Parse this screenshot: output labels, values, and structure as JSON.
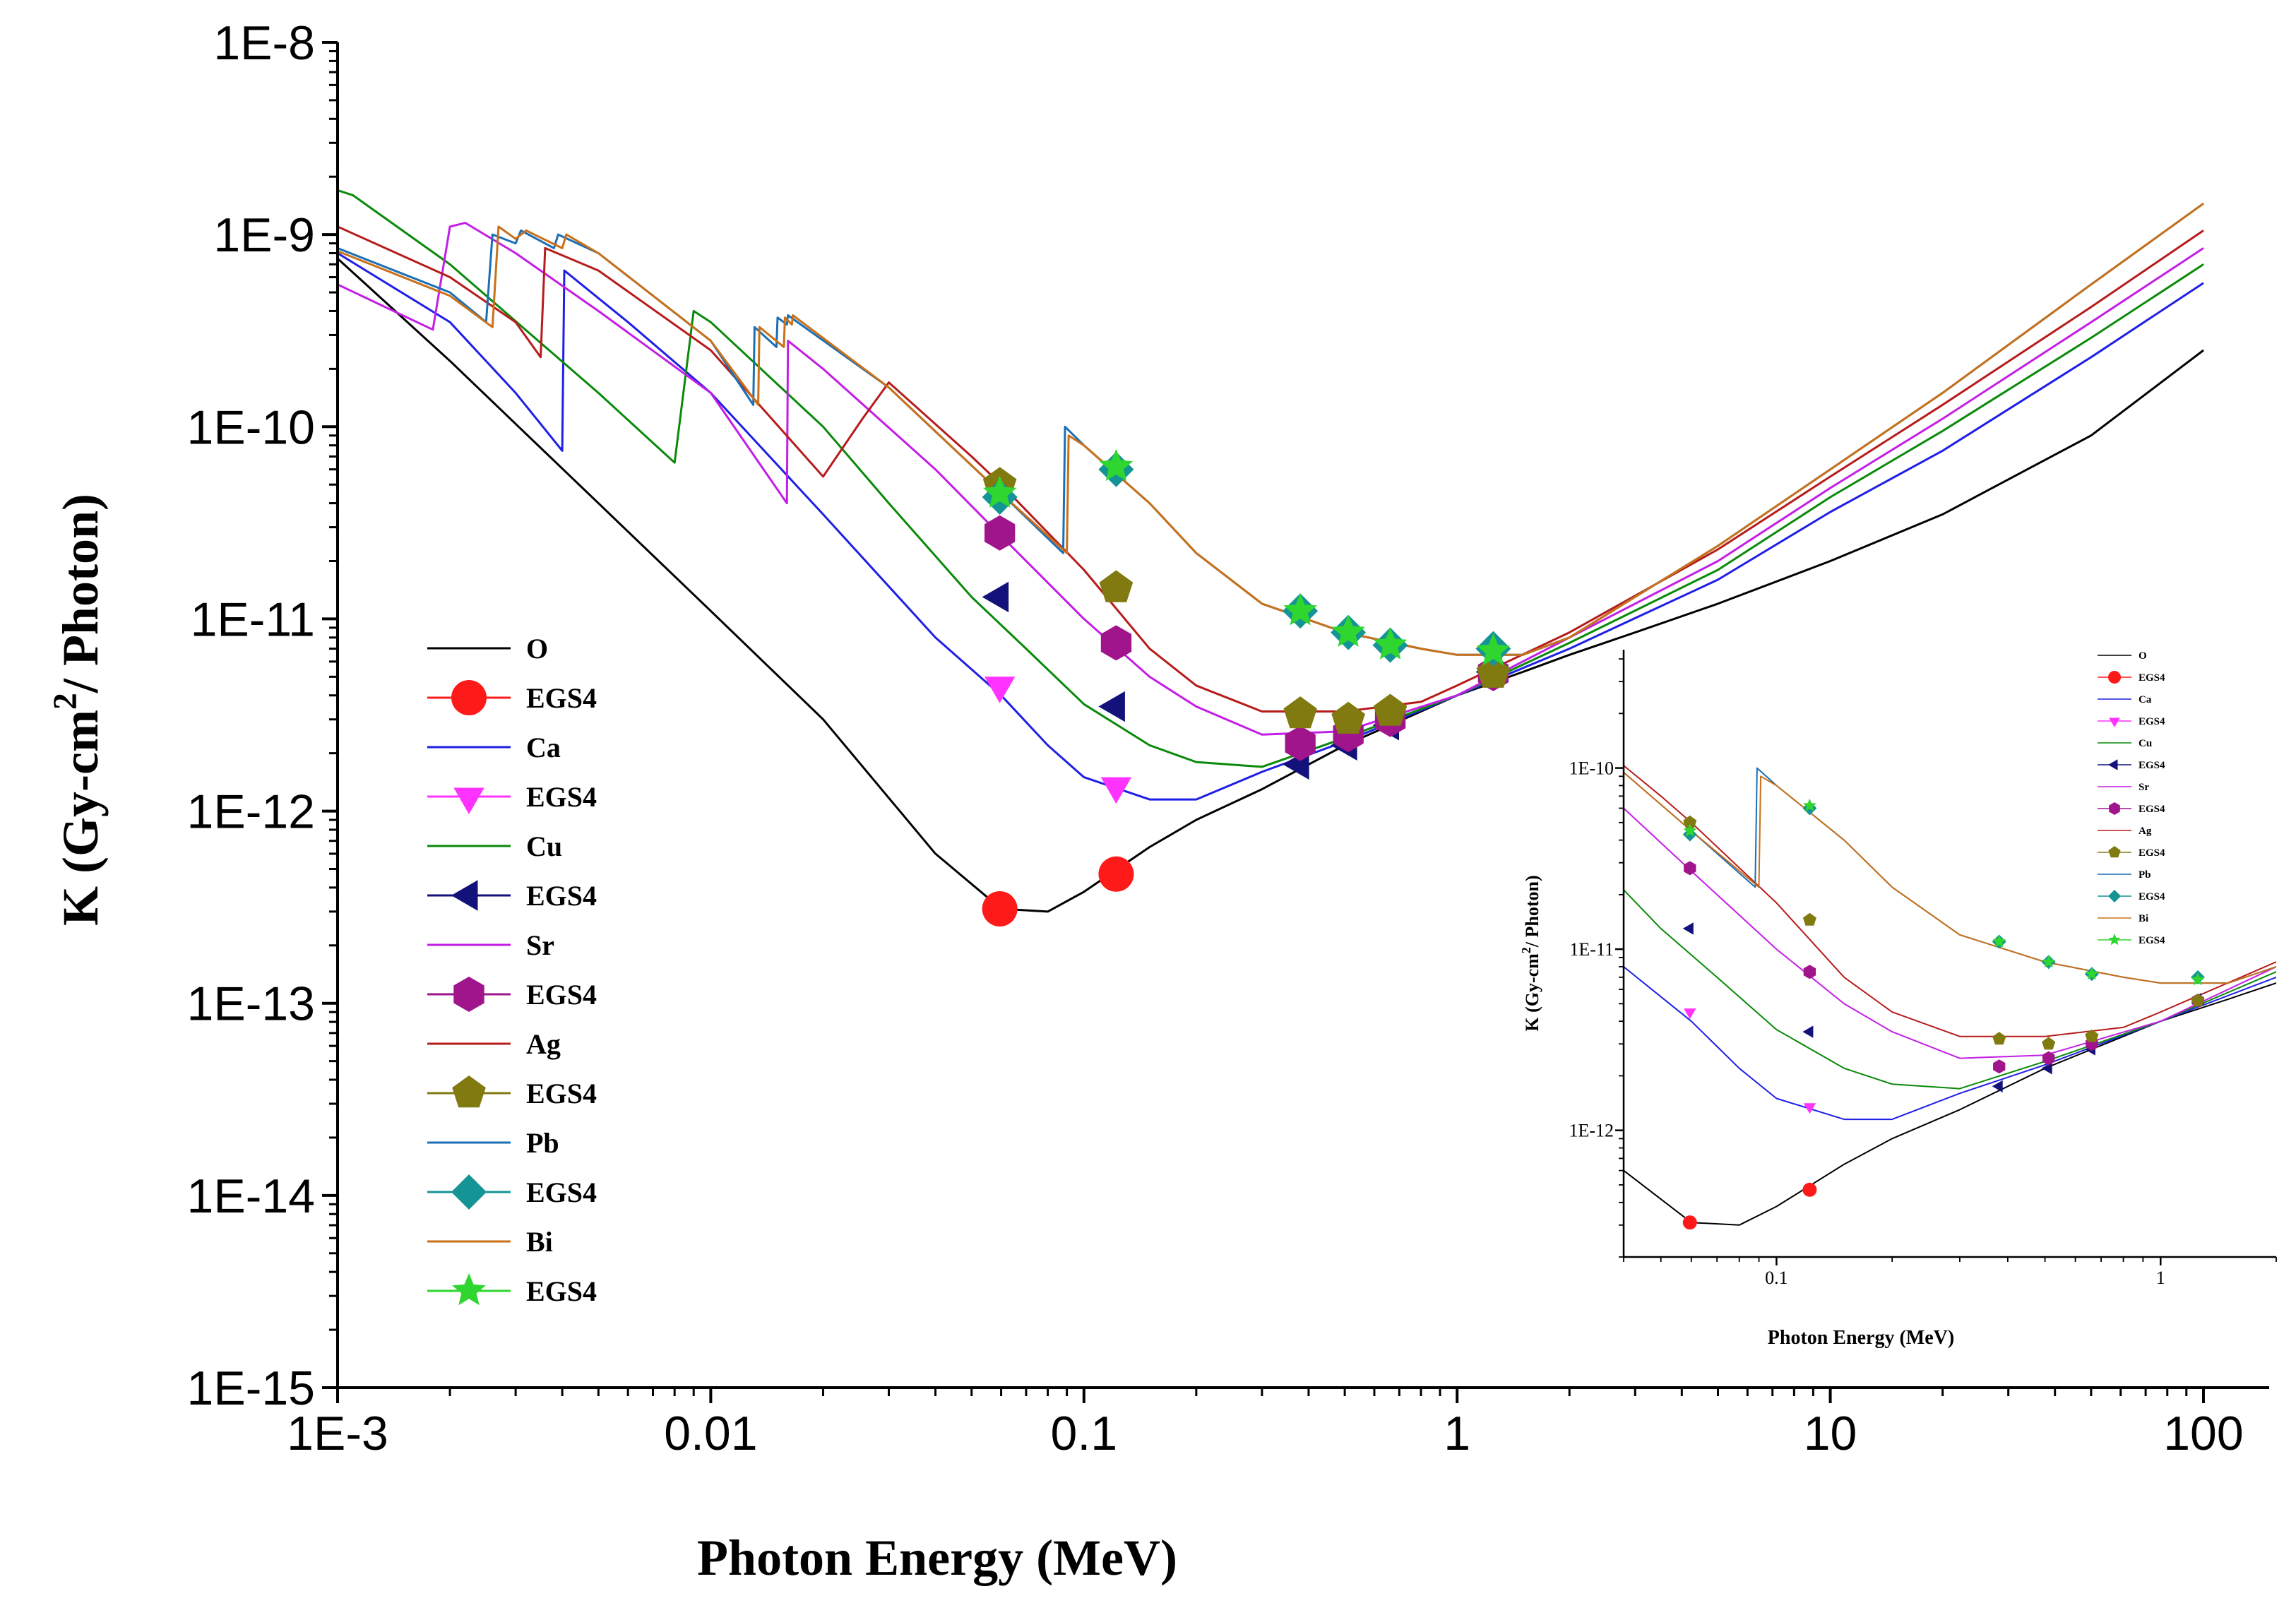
{
  "colors": {
    "O": "#000000",
    "Ca": "#1f1fe6",
    "Cu": "#0a8a0a",
    "Sr": "#c41ee6",
    "Ag": "#b71c1c",
    "Pb": "#1b6fb5",
    "Bi": "#c8711a",
    "EGS4_O": "#ff1a1a",
    "EGS4_Ca": "#ff33ff",
    "EGS4_Cu": "#12127a",
    "EGS4_Sr": "#a0148c",
    "EGS4_Ag": "#807a10",
    "EGS4_Pb": "#149494",
    "EGS4_Bi": "#2fd62f"
  },
  "chart_data": [
    {
      "type": "line",
      "name": "main",
      "xlabel": "Photon Energy (MeV)",
      "ylabel": "K (Gy-cm",
      "ylabel_sup": "2",
      "ylabel_tail": "/ Photon)",
      "xscale": "log",
      "yscale": "log",
      "xlim": [
        0.001,
        150
      ],
      "ylim": [
        1e-15,
        1e-08
      ],
      "xticks": [
        0.001,
        0.01,
        0.1,
        1,
        10,
        100
      ],
      "xtick_labels": [
        "1E-3",
        "0.01",
        "0.1",
        "1",
        "10",
        "100"
      ],
      "yticks": [
        1e-15,
        1e-14,
        1e-13,
        1e-12,
        1e-11,
        1e-10,
        1e-09,
        1e-08
      ],
      "ytick_labels": [
        "1E-15",
        "1E-14",
        "1E-13",
        "1E-12",
        "1E-11",
        "1E-10",
        "1E-9",
        "1E-8"
      ],
      "legend_position": "lower-left",
      "legend": [
        "O",
        "EGS4",
        "Ca",
        "EGS4",
        "Cu",
        "EGS4",
        "Sr",
        "EGS4",
        "Ag",
        "EGS4",
        "Pb",
        "EGS4",
        "Bi",
        "EGS4"
      ],
      "series": [
        {
          "name": "O",
          "x": [
            0.001,
            0.002,
            0.005,
            0.01,
            0.02,
            0.04,
            0.06,
            0.08,
            0.1,
            0.15,
            0.2,
            0.3,
            0.5,
            0.8,
            1,
            1.5,
            2,
            3,
            5,
            10,
            20,
            50,
            100
          ],
          "y": [
            7.5e-10,
            2.2e-10,
            4e-11,
            1.1e-11,
            3e-12,
            6e-13,
            3.1e-13,
            3e-13,
            3.8e-13,
            6.5e-13,
            9e-13,
            1.3e-12,
            2.2e-12,
            3.3e-12,
            4e-12,
            5.3e-12,
            6.5e-12,
            8.5e-12,
            1.2e-11,
            2e-11,
            3.5e-11,
            9e-11,
            2.5e-10
          ]
        },
        {
          "name": "Ca",
          "x": [
            0.001,
            0.002,
            0.003,
            0.004,
            0.00405,
            0.006,
            0.01,
            0.02,
            0.04,
            0.06,
            0.08,
            0.1,
            0.15,
            0.2,
            0.3,
            0.5,
            1,
            2,
            5,
            10,
            20,
            50,
            100
          ],
          "y": [
            8e-10,
            3.5e-10,
            1.5e-10,
            7.5e-11,
            6.5e-10,
            3.5e-10,
            1.5e-10,
            3.5e-11,
            8e-12,
            4e-12,
            2.2e-12,
            1.5e-12,
            1.15e-12,
            1.15e-12,
            1.6e-12,
            2.3e-12,
            4e-12,
            7e-12,
            1.6e-11,
            3.6e-11,
            7.5e-11,
            2.3e-10,
            5.6e-10
          ]
        },
        {
          "name": "Cu",
          "x": [
            0.001,
            0.0011,
            0.002,
            0.005,
            0.008,
            0.009,
            0.01,
            0.02,
            0.03,
            0.05,
            0.07,
            0.1,
            0.15,
            0.2,
            0.3,
            0.5,
            1,
            2,
            5,
            10,
            20,
            50,
            100
          ],
          "y": [
            1.7e-09,
            1.6e-09,
            7e-10,
            1.5e-10,
            6.5e-11,
            4e-10,
            3.5e-10,
            1e-10,
            4e-11,
            1.3e-11,
            7e-12,
            3.6e-12,
            2.2e-12,
            1.8e-12,
            1.7e-12,
            2.4e-12,
            4e-12,
            7.5e-12,
            1.8e-11,
            4.3e-11,
            9.5e-11,
            2.9e-10,
            7e-10
          ]
        },
        {
          "name": "Sr",
          "x": [
            0.001,
            0.0018,
            0.002,
            0.0022,
            0.003,
            0.005,
            0.01,
            0.016,
            0.0161,
            0.02,
            0.04,
            0.06,
            0.1,
            0.15,
            0.2,
            0.3,
            0.5,
            1,
            2,
            5,
            10,
            20,
            50,
            100
          ],
          "y": [
            5.5e-10,
            3.2e-10,
            1.1e-09,
            1.15e-09,
            8e-10,
            4e-10,
            1.5e-10,
            4e-11,
            2.8e-10,
            2e-10,
            6e-11,
            2.7e-11,
            1e-11,
            5e-12,
            3.5e-12,
            2.5e-12,
            2.6e-12,
            4e-12,
            8e-12,
            2e-11,
            4.8e-11,
            1.1e-10,
            3.5e-10,
            8.5e-10
          ]
        },
        {
          "name": "Ag",
          "x": [
            0.001,
            0.002,
            0.003,
            0.0035,
            0.0036,
            0.005,
            0.01,
            0.02,
            0.0255,
            0.03,
            0.05,
            0.06,
            0.1,
            0.15,
            0.2,
            0.3,
            0.5,
            0.8,
            1,
            2,
            5,
            10,
            20,
            50,
            100
          ],
          "y": [
            1.1e-09,
            6e-10,
            3.5e-10,
            2.3e-10,
            8.5e-10,
            6.5e-10,
            2.5e-10,
            5.5e-11,
            1.1e-10,
            1.7e-10,
            7e-11,
            5e-11,
            1.8e-11,
            7e-12,
            4.5e-12,
            3.3e-12,
            3.3e-12,
            3.7e-12,
            4.5e-12,
            8.5e-12,
            2.3e-11,
            5.5e-11,
            1.3e-10,
            4.2e-10,
            1.05e-09
          ]
        },
        {
          "name": "Pb",
          "x": [
            0.001,
            0.002,
            0.0025,
            0.0026,
            0.003,
            0.0031,
            0.0038,
            0.0039,
            0.005,
            0.01,
            0.013,
            0.0131,
            0.015,
            0.0151,
            0.016,
            0.0161,
            0.03,
            0.06,
            0.088,
            0.089,
            0.1,
            0.15,
            0.2,
            0.3,
            0.5,
            0.8,
            1,
            1.5,
            2,
            5,
            10,
            20,
            50,
            100
          ],
          "y": [
            8.5e-10,
            5e-10,
            3.5e-10,
            1e-09,
            9e-10,
            1.05e-09,
            8.5e-10,
            1e-09,
            8e-10,
            2.8e-10,
            1.3e-10,
            3.3e-10,
            2.6e-10,
            3.7e-10,
            3.4e-10,
            3.8e-10,
            1.6e-10,
            4.5e-11,
            2.2e-11,
            1e-10,
            8e-11,
            4e-11,
            2.2e-11,
            1.2e-11,
            8.5e-12,
            7e-12,
            6.5e-12,
            6.5e-12,
            8e-12,
            2.4e-11,
            6e-11,
            1.5e-10,
            5.5e-10,
            1.45e-09
          ]
        },
        {
          "name": "Bi",
          "x": [
            0.001,
            0.002,
            0.0026,
            0.0027,
            0.003,
            0.0032,
            0.004,
            0.0041,
            0.005,
            0.01,
            0.0134,
            0.0135,
            0.0157,
            0.0158,
            0.0165,
            0.0166,
            0.03,
            0.06,
            0.09,
            0.091,
            0.1,
            0.15,
            0.2,
            0.3,
            0.5,
            0.8,
            1,
            1.5,
            2,
            5,
            10,
            20,
            50,
            100
          ],
          "y": [
            8.2e-10,
            4.8e-10,
            3.3e-10,
            1.1e-09,
            9.5e-10,
            1.05e-09,
            8.5e-10,
            1e-09,
            8e-10,
            2.8e-10,
            1.3e-10,
            3.3e-10,
            2.6e-10,
            3.7e-10,
            3.4e-10,
            3.8e-10,
            1.6e-10,
            4.5e-11,
            2.2e-11,
            9e-11,
            8e-11,
            4e-11,
            2.2e-11,
            1.2e-11,
            8.5e-12,
            7e-12,
            6.5e-12,
            6.5e-12,
            8e-12,
            2.4e-11,
            6e-11,
            1.5e-10,
            5.5e-10,
            1.45e-09
          ]
        }
      ],
      "markers": [
        {
          "name": "EGS4",
          "of": "O",
          "shape": "circle",
          "x": [
            0.0595,
            0.122
          ],
          "y": [
            3.1e-13,
            4.7e-13
          ]
        },
        {
          "name": "EGS4",
          "of": "Ca",
          "shape": "tri-down",
          "x": [
            0.0595,
            0.122
          ],
          "y": [
            4.5e-12,
            1.35e-12
          ]
        },
        {
          "name": "EGS4",
          "of": "Cu",
          "shape": "tri-left",
          "x": [
            0.0595,
            0.122,
            0.38,
            0.511,
            0.662,
            1.25
          ],
          "y": [
            1.3e-11,
            3.5e-12,
            1.75e-12,
            2.2e-12,
            2.8e-12,
            5.3e-12
          ]
        },
        {
          "name": "EGS4",
          "of": "Sr",
          "shape": "hexagon",
          "x": [
            0.0595,
            0.122,
            0.38,
            0.511,
            0.662,
            1.25
          ],
          "y": [
            2.8e-11,
            7.5e-12,
            2.25e-12,
            2.5e-12,
            3e-12,
            5.2e-12
          ]
        },
        {
          "name": "EGS4",
          "of": "Ag",
          "shape": "pentagon",
          "x": [
            0.0595,
            0.122,
            0.38,
            0.511,
            0.662,
            1.25
          ],
          "y": [
            5e-11,
            1.45e-11,
            3.2e-12,
            3e-12,
            3.3e-12,
            5.2e-12
          ]
        },
        {
          "name": "EGS4",
          "of": "Pb",
          "shape": "diamond",
          "x": [
            0.0595,
            0.122,
            0.38,
            0.511,
            0.662,
            1.25
          ],
          "y": [
            4.3e-11,
            6e-11,
            1.1e-11,
            8.5e-12,
            7.3e-12,
            7e-12
          ]
        },
        {
          "name": "EGS4",
          "of": "Bi",
          "shape": "star",
          "x": [
            0.0595,
            0.122,
            0.38,
            0.511,
            0.662,
            1.25
          ],
          "y": [
            4.5e-11,
            6.2e-11,
            1.1e-11,
            8.5e-12,
            7.3e-12,
            6.8e-12
          ]
        }
      ]
    },
    {
      "type": "line",
      "name": "inset",
      "xlabel": "Photon Energy (MeV)",
      "ylabel": "K (Gy-cm",
      "ylabel_sup": "2",
      "ylabel_tail": "/ Photon)",
      "xscale": "log",
      "yscale": "log",
      "xlim": [
        0.04,
        2
      ],
      "ylim": [
        2e-13,
        4.5e-10
      ],
      "xticks": [
        0.1,
        1
      ],
      "xtick_labels": [
        "0.1",
        "1"
      ],
      "yticks": [
        1e-12,
        1e-11,
        1e-10
      ],
      "ytick_labels": [
        "1E-12",
        "1E-11",
        "1E-10"
      ],
      "legend_position": "top-right",
      "legend": [
        "O",
        "EGS4",
        "Ca",
        "EGS4",
        "Cu",
        "EGS4",
        "Sr",
        "EGS4",
        "Ag",
        "EGS4",
        "Pb",
        "EGS4",
        "Bi",
        "EGS4"
      ],
      "note": "zoom of main chart over 0.04-2 MeV; same series and markers as main chart"
    }
  ]
}
